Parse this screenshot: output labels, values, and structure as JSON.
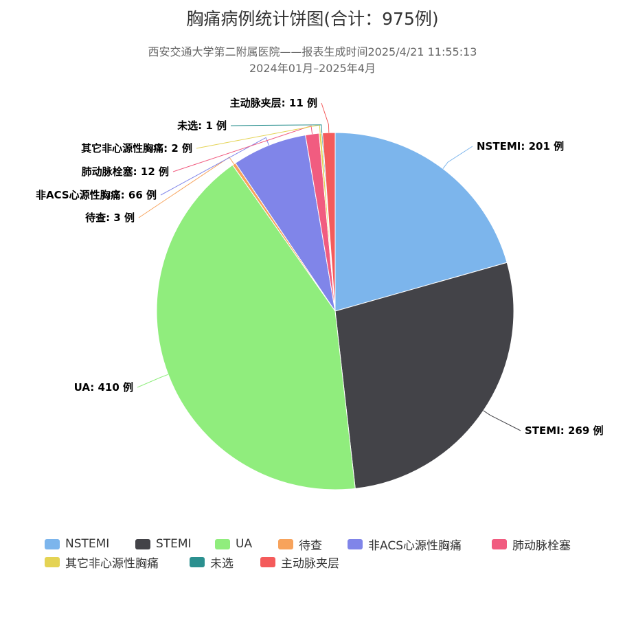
{
  "header": {
    "title": "胸痛病例统计饼图(合计：975例)",
    "subtitle_line1": "西安交通大学第二附属医院——报表生成时间2025/4/21 11:55:13",
    "subtitle_line2": "2024年01月–2025年4月"
  },
  "chart_data": {
    "type": "pie",
    "title": "胸痛病例统计饼图(合计：975例)",
    "total": 975,
    "unit": "例",
    "legend_position": "bottom",
    "slices": [
      {
        "name": "NSTEMI",
        "value": 201,
        "color": "#7cb5ec",
        "label": "NSTEMI: 201 例"
      },
      {
        "name": "STEMI",
        "value": 269,
        "color": "#434348",
        "label": "STEMI: 269 例"
      },
      {
        "name": "UA",
        "value": 410,
        "color": "#90ed7d",
        "label": "UA: 410 例"
      },
      {
        "name": "待查",
        "value": 3,
        "color": "#f7a35c",
        "label": "待查: 3 例"
      },
      {
        "name": "非ACS心源性胸痛",
        "value": 66,
        "color": "#8085e9",
        "label": "非ACS心源性胸痛: 66 例"
      },
      {
        "name": "肺动脉栓塞",
        "value": 12,
        "color": "#f15c80",
        "label": "肺动脉栓塞: 12 例"
      },
      {
        "name": "其它非心源性胸痛",
        "value": 2,
        "color": "#e4d354",
        "label": "其它非心源性胸痛: 2 例"
      },
      {
        "name": "未选",
        "value": 1,
        "color": "#2b908f",
        "label": "未选: 1 例"
      },
      {
        "name": "主动脉夹层",
        "value": 11,
        "color": "#f45b5b",
        "label": "主动脉夹层: 11 例"
      }
    ]
  }
}
